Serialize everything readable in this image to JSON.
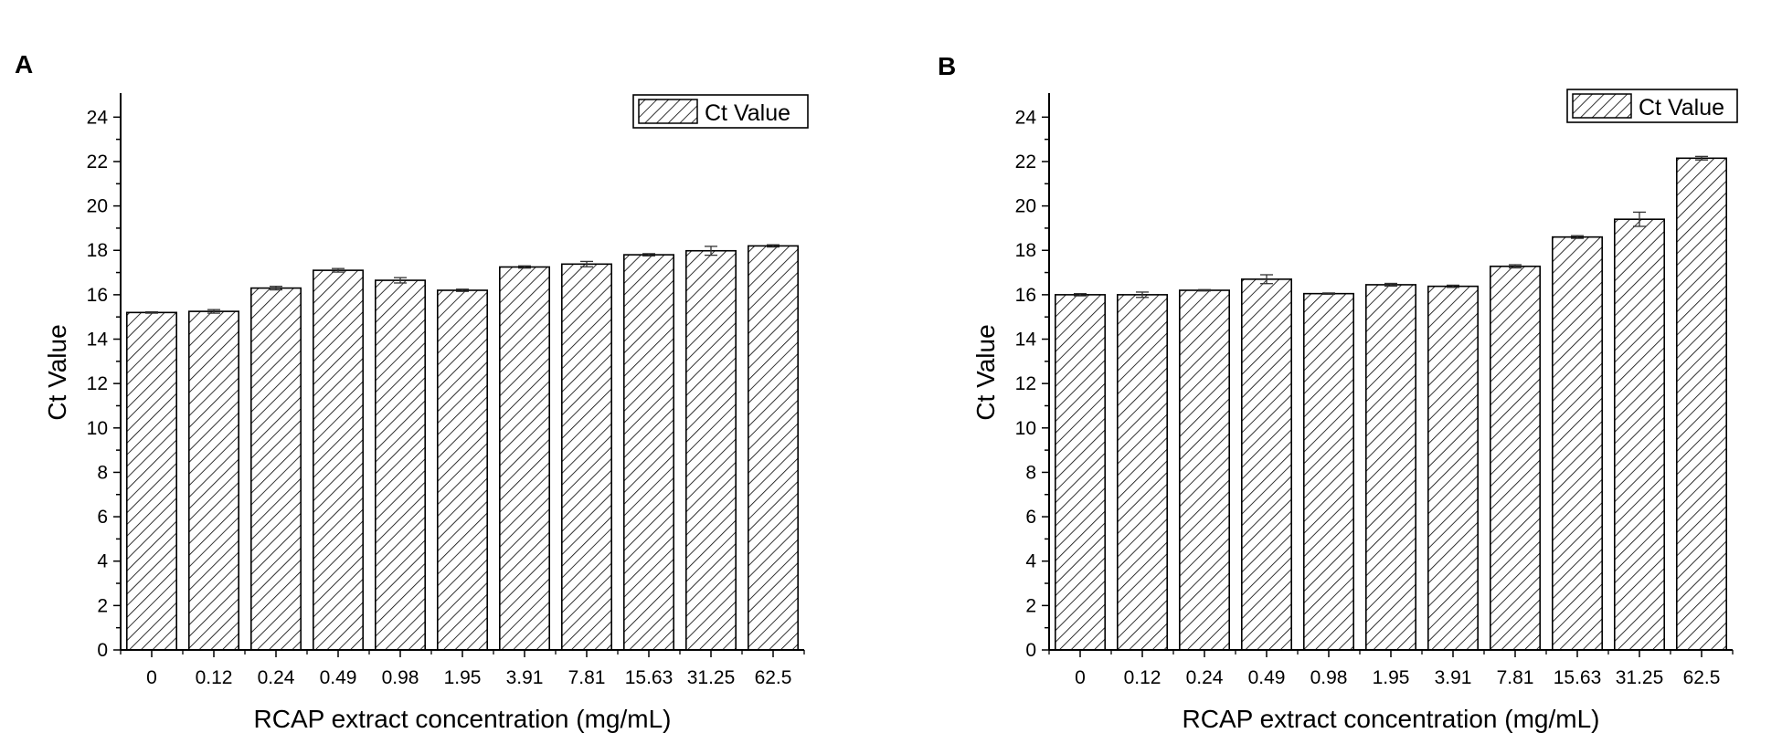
{
  "panels": [
    {
      "label": "A",
      "xlabel": "RCAP extract concentration (mg/mL)",
      "ylabel": "Ct Value",
      "legend": "Ct Value"
    },
    {
      "label": "B",
      "xlabel": "RCAP extract concentration (mg/mL)",
      "ylabel": "Ct Value",
      "legend": "Ct Value"
    }
  ],
  "chart_data": [
    {
      "type": "bar",
      "panel": "A",
      "categories": [
        "0",
        "0.12",
        "0.24",
        "0.49",
        "0.98",
        "1.95",
        "3.91",
        "7.81",
        "15.63",
        "31.25",
        "62.5"
      ],
      "series": [
        {
          "name": "Ct Value",
          "values": [
            15.2,
            15.25,
            16.3,
            17.1,
            16.65,
            16.2,
            17.25,
            17.38,
            17.8,
            17.98,
            18.2
          ],
          "errors": [
            0.03,
            0.08,
            0.08,
            0.08,
            0.12,
            0.05,
            0.05,
            0.12,
            0.05,
            0.2,
            0.05
          ]
        }
      ],
      "fill": "diagonal hatch",
      "xlabel": "RCAP extract concentration (mg/mL)",
      "ylabel": "Ct Value",
      "ylim": [
        0,
        25
      ],
      "yticks": [
        0,
        2,
        4,
        6,
        8,
        10,
        12,
        14,
        16,
        18,
        20,
        22,
        24
      ],
      "legend_position": "top-right",
      "grid": false
    },
    {
      "type": "bar",
      "panel": "B",
      "categories": [
        "0",
        "0.12",
        "0.24",
        "0.49",
        "0.98",
        "1.95",
        "3.91",
        "7.81",
        "15.63",
        "31.25",
        "62.5"
      ],
      "series": [
        {
          "name": "Ct Value",
          "values": [
            16.0,
            16.0,
            16.2,
            16.7,
            16.05,
            16.45,
            16.38,
            17.28,
            18.6,
            19.4,
            22.15
          ],
          "errors": [
            0.05,
            0.12,
            0.03,
            0.2,
            0.03,
            0.06,
            0.05,
            0.07,
            0.06,
            0.32,
            0.08
          ]
        }
      ],
      "fill": "diagonal hatch",
      "xlabel": "RCAP extract concentration (mg/mL)",
      "ylabel": "Ct Value",
      "ylim": [
        0,
        25
      ],
      "yticks": [
        0,
        2,
        4,
        6,
        8,
        10,
        12,
        14,
        16,
        18,
        20,
        22,
        24
      ],
      "legend_position": "top-right",
      "grid": false
    }
  ]
}
